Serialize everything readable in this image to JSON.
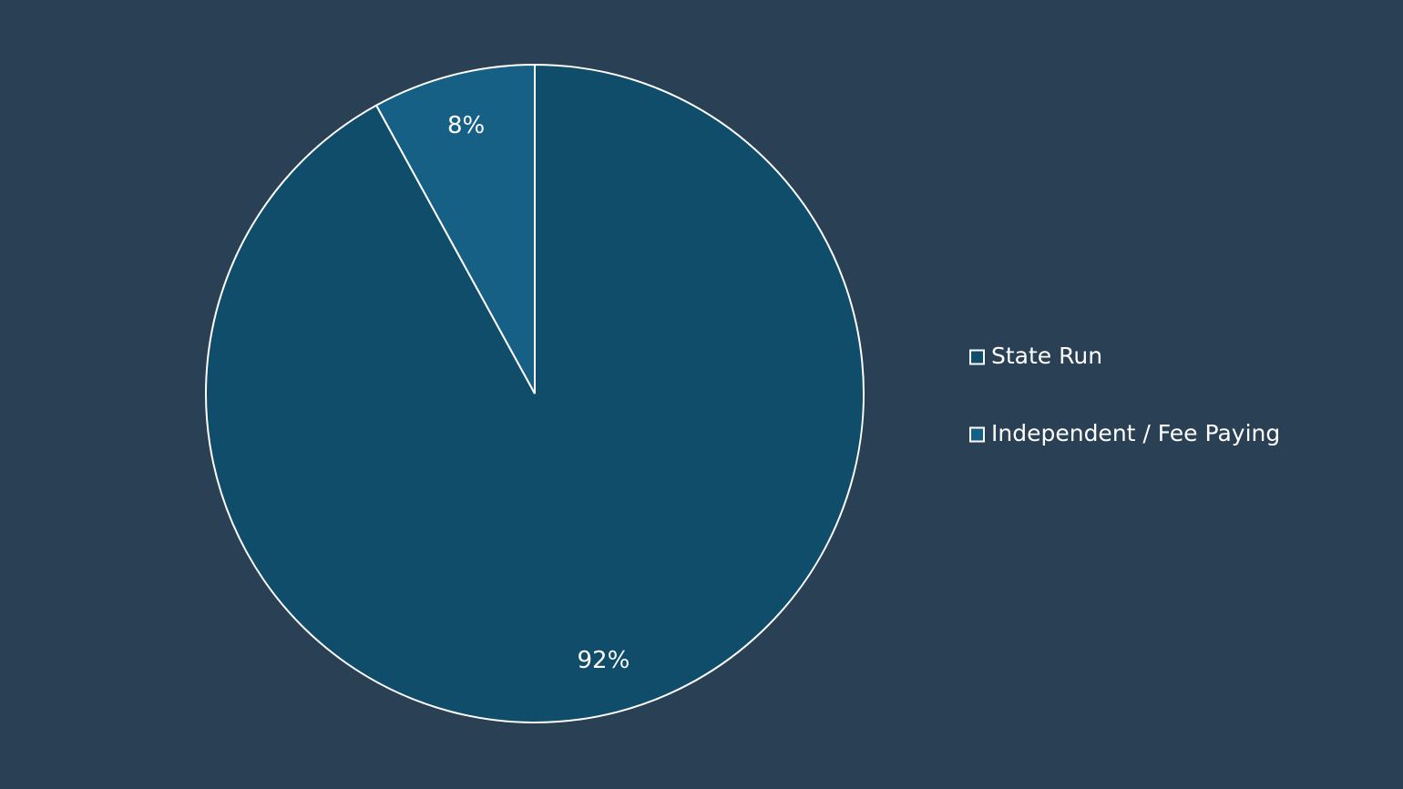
{
  "chart_data": {
    "type": "pie",
    "categories": [
      "State Run",
      "Independent / Fee Paying"
    ],
    "values": [
      92,
      8
    ],
    "value_labels": [
      "92%",
      "8%"
    ],
    "colors": [
      "#0f4d6b",
      "#166085"
    ],
    "legend": "right"
  }
}
